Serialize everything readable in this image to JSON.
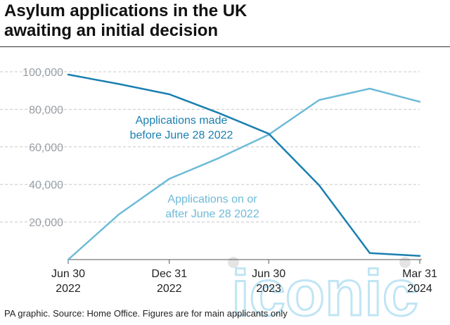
{
  "title_lines": [
    "Asylum applications in the UK",
    "awaiting an initial decision"
  ],
  "footer": "PA graphic. Source: Home Office. Figures are for main applicants only",
  "watermark": "iconic",
  "colors": {
    "series1": "#1a7fb0",
    "series2": "#6dbad8",
    "grid": "#c8c8c8",
    "axis_text": "#9aa0a6"
  },
  "chart_data": {
    "type": "line",
    "x": [
      "2022-06-30",
      "2022-09-30",
      "2022-12-31",
      "2023-03-31",
      "2023-06-30",
      "2023-09-30",
      "2023-12-31",
      "2024-03-31"
    ],
    "x_tick_labels": [
      {
        "x": "2022-06-30",
        "lines": [
          "Jun 30",
          "2022"
        ]
      },
      {
        "x": "2022-12-31",
        "lines": [
          "Dec 31",
          "2022"
        ]
      },
      {
        "x": "2023-06-30",
        "lines": [
          "Jun 30",
          "2023"
        ]
      },
      {
        "x": "2024-03-31",
        "lines": [
          "Mar 31",
          "2024"
        ]
      }
    ],
    "ylim": [
      0,
      100000
    ],
    "y_ticks": [
      20000,
      40000,
      60000,
      80000,
      100000
    ],
    "y_tick_labels": [
      "20,000",
      "40,000",
      "60,000",
      "80,000",
      "100,000"
    ],
    "grid": true,
    "series": [
      {
        "name": "Applications made before June 28 2022",
        "label_lines": [
          "Applications made",
          "before June 28 2022"
        ],
        "values": [
          98500,
          93500,
          88000,
          78000,
          67000,
          39500,
          3500,
          2000
        ]
      },
      {
        "name": "Applications on or after June 28 2022",
        "label_lines": [
          "Applications on or",
          "after June 28 2022"
        ],
        "values": [
          0,
          24000,
          43000,
          54000,
          66500,
          85000,
          91000,
          84000
        ]
      }
    ]
  }
}
